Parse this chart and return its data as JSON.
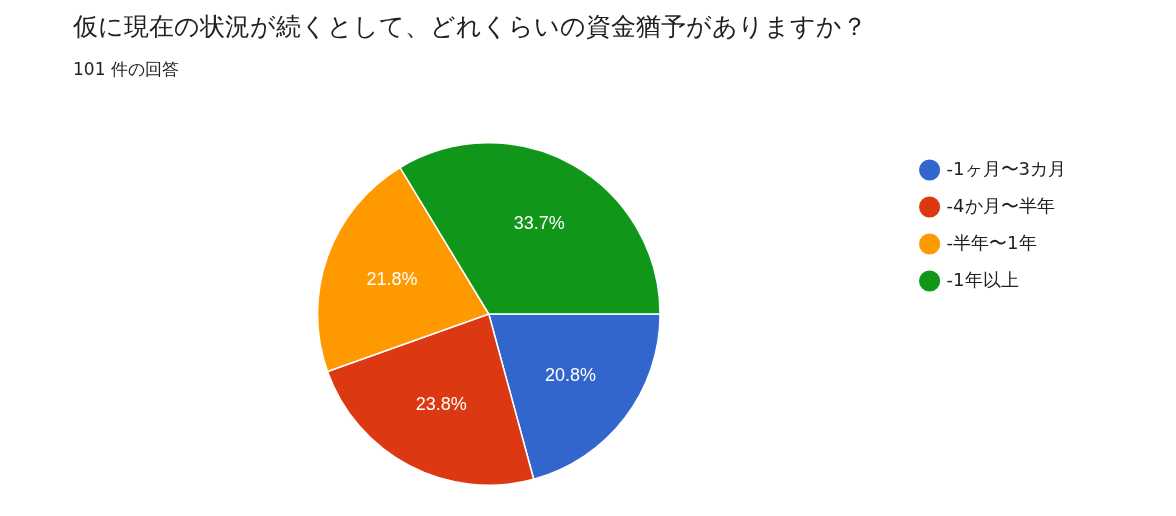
{
  "chart_data": {
    "type": "pie",
    "title": "仮に現在の状況が続くとして、どれくらいの資金猶予がありますか？",
    "subtitle": "101 件の回答",
    "categories": [
      "-1ヶ月〜3カ月",
      "-4か月〜半年",
      "-半年〜1年",
      "-1年以上"
    ],
    "values": [
      20.8,
      23.8,
      21.8,
      33.7
    ],
    "colors": [
      "#3366cc",
      "#dc3912",
      "#ff9900",
      "#109618"
    ],
    "value_labels": [
      "20.8%",
      "23.8%",
      "21.8%",
      "33.7%"
    ],
    "legend": "right"
  }
}
